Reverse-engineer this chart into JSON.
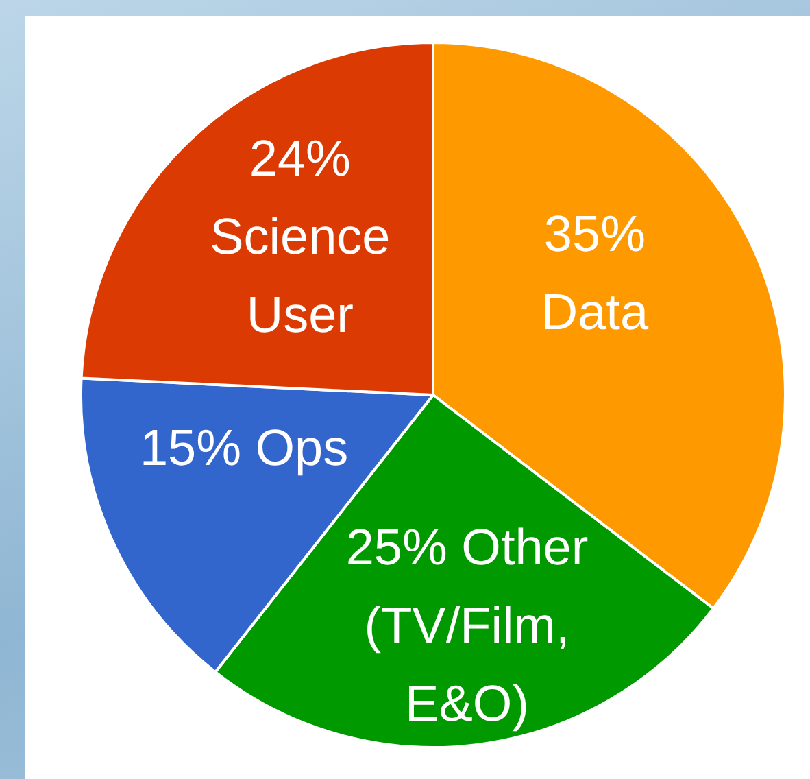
{
  "chart_data": {
    "type": "pie",
    "categories": [
      "Data",
      "Other (TV/Film, E&O)",
      "Ops",
      "Science User"
    ],
    "values": [
      35,
      25,
      15,
      24
    ],
    "colors": [
      "#fe9900",
      "#009900",
      "#3366cc",
      "#dc3a03"
    ],
    "value_labels": [
      "35%",
      "25%",
      "15%",
      "24%"
    ],
    "legend": false
  }
}
